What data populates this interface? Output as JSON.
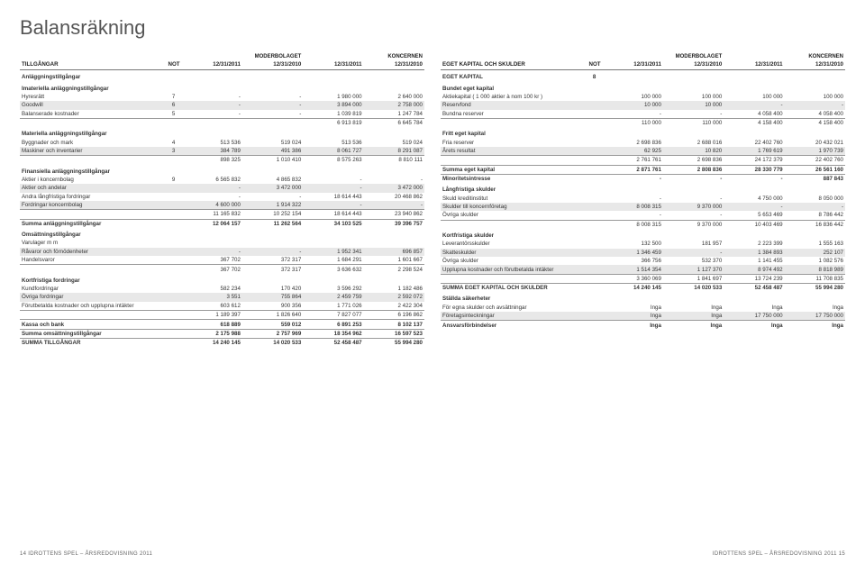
{
  "title": "Balansräkning",
  "footer_left": "14   IDROTTENS SPEL – ÅRSREDOVISNING 2011",
  "footer_right": "IDROTTENS SPEL – ÅRSREDOVISNING 2011   15",
  "header": {
    "not": "NOT",
    "group_parent": "MODERBOLAGET",
    "group_concern": "KONCERNEN",
    "c1": "12/31/2011",
    "c2": "12/31/2010",
    "c3": "12/31/2011",
    "c4": "12/31/2010"
  },
  "left": {
    "head": "TILLGÅNGAR",
    "sub1": "Anläggningstillgångar",
    "s1": {
      "h": "Imateriella anläggningstillgångar",
      "r": [
        [
          "Hyresrätt",
          "7",
          "-",
          "-",
          "1 980 000",
          "2 640 000"
        ],
        [
          "Goodwill",
          "6",
          "-",
          "-",
          "3 894 000",
          "2 758 000"
        ],
        [
          "Balanserade kostnader",
          "5",
          "-",
          "-",
          "1 039 819",
          "1 247 784"
        ]
      ],
      "t": [
        "",
        "",
        "",
        "",
        "6 913 819",
        "6 645 784"
      ]
    },
    "s2": {
      "h": "Materiella anläggningstillgångar",
      "r": [
        [
          "Byggnader och mark",
          "4",
          "513 536",
          "519 024",
          "513 536",
          "519 024"
        ],
        [
          "Maskiner och inventarier",
          "3",
          "384 789",
          "491 386",
          "8 061 727",
          "8 291 087"
        ]
      ],
      "t": [
        "",
        "",
        "898 325",
        "1 010 410",
        "8 575 263",
        "8 810 111"
      ]
    },
    "s3": {
      "h": "Finansiella anläggningstillgångar",
      "r": [
        [
          "Aktier i koncernbolag",
          "9",
          "6 565 832",
          "4 865 832",
          "-",
          "-"
        ],
        [
          "Aktier och andelar",
          "",
          "-",
          "3 472 000",
          "-",
          "3 472 000"
        ],
        [
          "Andra långfristiga fordringar",
          "",
          "-",
          "-",
          "18 614 443",
          "20 468 862"
        ],
        [
          "Fordringar koncernbolag",
          "",
          "4 600 000",
          "1 914 322",
          "-",
          "-"
        ]
      ],
      "t": [
        "",
        "",
        "11 165 832",
        "10 252 154",
        "18 614 443",
        "23 940 862"
      ]
    },
    "sumanl": [
      "Summa anläggningstillgångar",
      "",
      "12 064 157",
      "11 262 564",
      "34 103 525",
      "39 396 757"
    ],
    "s4": {
      "h": "Omsättningstillgångar",
      "h2": "Varulager m m",
      "r": [
        [
          "Råvaror och förnödenheter",
          "",
          "-",
          "-",
          "1 952 341",
          "696 857"
        ],
        [
          "Handelsvaror",
          "",
          "367 702",
          "372 317",
          "1 684 291",
          "1 601 667"
        ]
      ],
      "t": [
        "",
        "",
        "367 702",
        "372 317",
        "3 636 632",
        "2 298 524"
      ]
    },
    "s5": {
      "h": "Kortfristiga fordringar",
      "r": [
        [
          "Kundfordringar",
          "",
          "582 234",
          "170 420",
          "3 596 292",
          "1 182 486"
        ],
        [
          "Övriga fordringar",
          "",
          "3 551",
          "755 864",
          "2 459 759",
          "2 592 072"
        ],
        [
          "Förutbetalda kostnader och upplupna intäkter",
          "",
          "603 612",
          "900 356",
          "1 771 026",
          "2 422 304"
        ]
      ],
      "t": [
        "",
        "",
        "1 189 397",
        "1 826 640",
        "7 827 077",
        "6 196 862"
      ]
    },
    "kassa": [
      "Kassa och bank",
      "",
      "618 889",
      "559 012",
      "6 891 253",
      "8 102 137"
    ],
    "sumoms": [
      "Summa omsättningstillgångar",
      "",
      "2 175 988",
      "2 757 969",
      "18 354 962",
      "16 597 523"
    ],
    "sumtill": [
      "SUMMA TILLGÅNGAR",
      "",
      "14 240 145",
      "14 020 533",
      "52 458 487",
      "55 994 280"
    ]
  },
  "right": {
    "head": "EGET KAPITAL OCH SKULDER",
    "ek": [
      "EGET KAPITAL",
      "8",
      "",
      "",
      "",
      ""
    ],
    "s1": {
      "h": "Bundet eget kapital",
      "r": [
        [
          "Aktiekapital ( 1 000 aktier à nom 100 kr )",
          "",
          "100 000",
          "100 000",
          "100 000",
          "100 000"
        ],
        [
          "Reservfond",
          "",
          "10 000",
          "10 000",
          "-",
          "-"
        ],
        [
          "Bundna reserver",
          "",
          "-",
          "-",
          "4 058 400",
          "4 058 400"
        ]
      ],
      "t": [
        "",
        "",
        "110 000",
        "110 000",
        "4 158 400",
        "4 158 400"
      ]
    },
    "s2": {
      "h": "Fritt eget kapital",
      "r": [
        [
          "Fria reserver",
          "",
          "2 698 836",
          "2 688 016",
          "22 402 760",
          "20 432 021"
        ],
        [
          "Årets resultat",
          "",
          "62 925",
          "10 820",
          "1 769 619",
          "1 970 739"
        ]
      ],
      "t": [
        "",
        "",
        "2 761 761",
        "2 698 836",
        "24 172 379",
        "22 402 760"
      ]
    },
    "sek": [
      "Summa eget kapital",
      "",
      "2 871 761",
      "2 808 836",
      "28 330 779",
      "26 561 160"
    ],
    "min": [
      "Minoritetsintresse",
      "",
      "-",
      "-",
      "-",
      "887 843"
    ],
    "s3": {
      "h": "Långfristiga skulder",
      "r": [
        [
          "Skuld kreditinstitut",
          "",
          "-",
          "-",
          "4 750 000",
          "8 050 000"
        ],
        [
          "Skulder till koncernföretag",
          "",
          "8 008 315",
          "9 370 000",
          "-",
          "-"
        ],
        [
          "Övriga skulder",
          "",
          "-",
          "-",
          "5 653 469",
          "8 786 442"
        ]
      ],
      "t": [
        "",
        "",
        "8 008 315",
        "9 370 000",
        "10 403 469",
        "16 836 442"
      ]
    },
    "s4": {
      "h": "Kortfristiga skulder",
      "r": [
        [
          "Leverantörsskulder",
          "",
          "132 500",
          "181 957",
          "2 223 399",
          "1 555 163"
        ],
        [
          "Skatteskulder",
          "",
          "1 346 459",
          "-",
          "1 384 893",
          "252 107"
        ],
        [
          "Övriga skulder",
          "",
          "366 756",
          "532 370",
          "1 141 455",
          "1 082 576"
        ],
        [
          "Upplupna kostnader och förutbetalda intäkter",
          "",
          "1 514 354",
          "1 127 370",
          "8 974 492",
          "8 818 989"
        ]
      ],
      "t": [
        "",
        "",
        "3 360 069",
        "1 841 697",
        "13 724 239",
        "11 708 835"
      ]
    },
    "sum": [
      "SUMMA EGET KAPITAL OCH SKULDER",
      "",
      "14 240 145",
      "14 020 533",
      "52 458 487",
      "55 994 280"
    ],
    "s5": {
      "h": "Ställda säkerheter",
      "r": [
        [
          "För egna skulder och avsättningar",
          "",
          "Inga",
          "Inga",
          "Inga",
          "Inga"
        ],
        [
          "Företagsinteckningar",
          "",
          "Inga",
          "Inga",
          "17 750 000",
          "17 750 000"
        ]
      ]
    },
    "ansv": [
      "Ansvarsförbindelser",
      "",
      "Inga",
      "Inga",
      "Inga",
      "Inga"
    ]
  }
}
